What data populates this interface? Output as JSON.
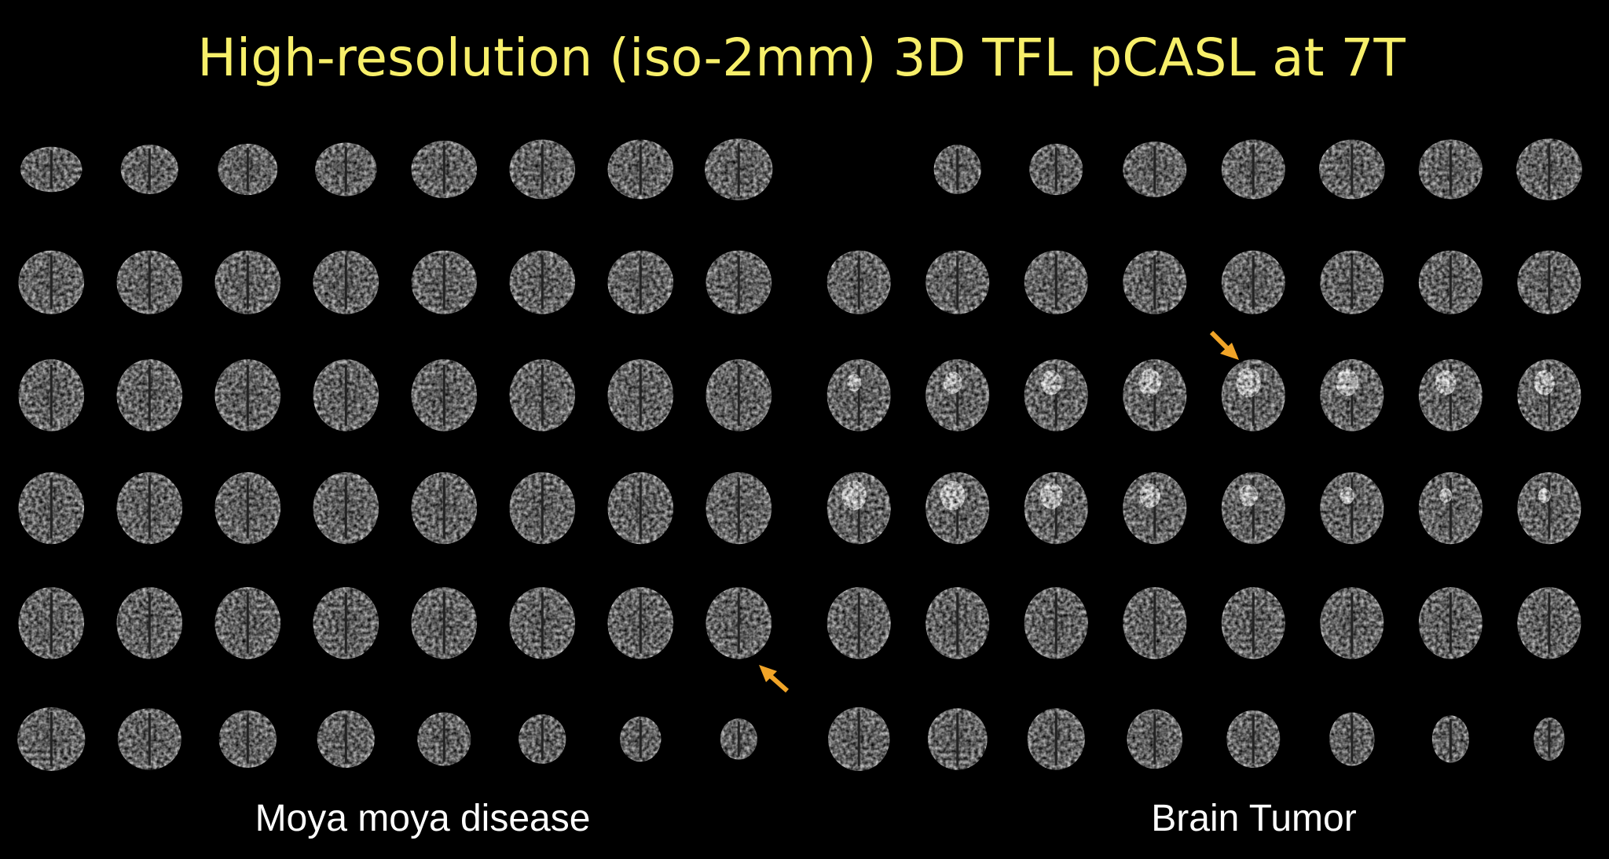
{
  "header": {
    "title": "High-resolution (iso-2mm) 3D TFL pCASL at 7T"
  },
  "panels": [
    {
      "caption": "Moya moya disease"
    },
    {
      "caption": "Brain Tumor"
    }
  ]
}
